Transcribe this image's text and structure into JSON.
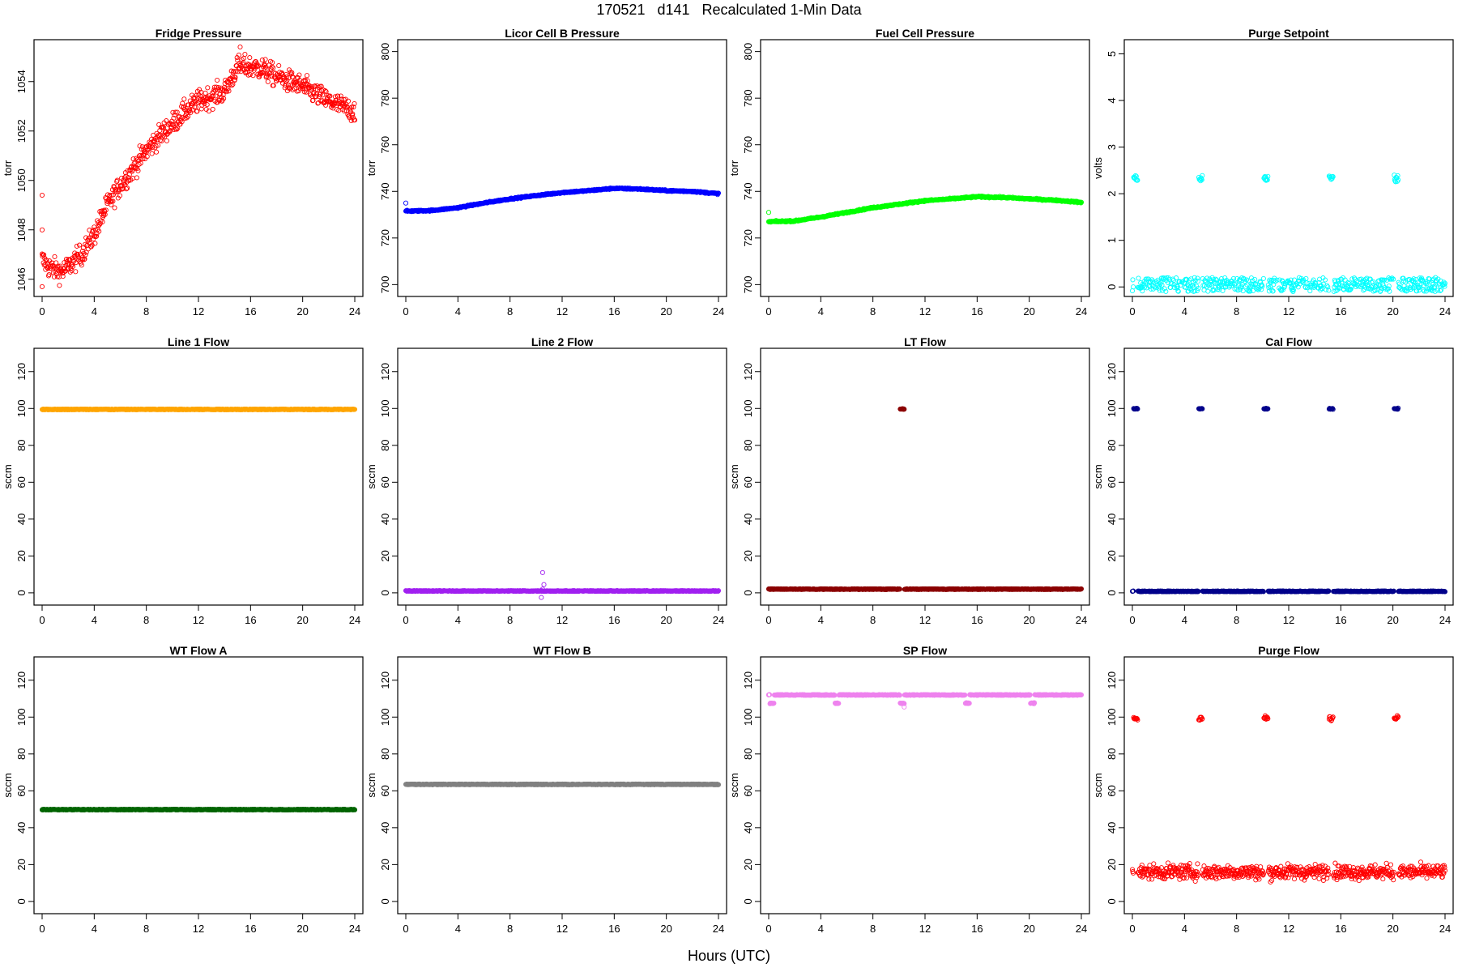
{
  "page_title": "170521   d141   Recalculated 1-Min Data",
  "x_axis_title": "Hours (UTC)",
  "chart_data": [
    {
      "type": "scatter",
      "title": "Fridge Pressure",
      "ylabel": "torr",
      "color": "#ff0000",
      "xlim": [
        0,
        24
      ],
      "ylim": [
        1045.5,
        1055.5
      ],
      "xticks": [
        0,
        4,
        8,
        12,
        16,
        20,
        24
      ],
      "yticks": [
        1046,
        1048,
        1050,
        1052,
        1054
      ],
      "curve": [
        [
          0,
          1046.8
        ],
        [
          0.5,
          1046.5
        ],
        [
          1,
          1046.4
        ],
        [
          1.5,
          1046.3
        ],
        [
          2,
          1046.5
        ],
        [
          3,
          1047
        ],
        [
          4,
          1047.8
        ],
        [
          5,
          1049
        ],
        [
          6,
          1049.8
        ],
        [
          7,
          1050.5
        ],
        [
          8,
          1051.2
        ],
        [
          9,
          1051.8
        ],
        [
          10,
          1052.3
        ],
        [
          11,
          1052.8
        ],
        [
          12,
          1053.2
        ],
        [
          13,
          1053.4
        ],
        [
          14,
          1053.6
        ],
        [
          15,
          1054.6
        ],
        [
          16,
          1054.6
        ],
        [
          17,
          1054.5
        ],
        [
          18,
          1054.2
        ],
        [
          19,
          1054
        ],
        [
          20,
          1053.8
        ],
        [
          21,
          1053.5
        ],
        [
          22,
          1053.2
        ],
        [
          23,
          1053
        ],
        [
          24,
          1052.8
        ]
      ],
      "noise": 0.45,
      "outliers": [
        [
          0,
          1049.4
        ],
        [
          0,
          1048
        ],
        [
          0,
          1045.7
        ],
        [
          15.2,
          1055.4
        ],
        [
          12.2,
          1053.4
        ]
      ]
    },
    {
      "type": "scatter",
      "title": "Licor Cell B Pressure",
      "ylabel": "torr",
      "color": "#0000ff",
      "xlim": [
        0,
        24
      ],
      "ylim": [
        697,
        803
      ],
      "xticks": [
        0,
        4,
        8,
        12,
        16,
        20,
        24
      ],
      "yticks": [
        700,
        720,
        740,
        760,
        780,
        800
      ],
      "curve": [
        [
          0,
          731.5
        ],
        [
          2,
          731.8
        ],
        [
          4,
          733
        ],
        [
          6,
          735
        ],
        [
          8,
          736.8
        ],
        [
          10,
          738.2
        ],
        [
          12,
          739.5
        ],
        [
          14,
          740.3
        ],
        [
          16,
          741.3
        ],
        [
          18,
          741
        ],
        [
          20,
          740.3
        ],
        [
          22,
          740
        ],
        [
          24,
          739
        ]
      ],
      "noise": 0.3,
      "outliers": [
        [
          0,
          735
        ]
      ]
    },
    {
      "type": "scatter",
      "title": "Fuel Cell Pressure",
      "ylabel": "torr",
      "color": "#00ff00",
      "xlim": [
        0,
        24
      ],
      "ylim": [
        697,
        803
      ],
      "xticks": [
        0,
        4,
        8,
        12,
        16,
        20,
        24
      ],
      "yticks": [
        700,
        720,
        740,
        760,
        780,
        800
      ],
      "curve": [
        [
          0,
          727
        ],
        [
          2,
          727.3
        ],
        [
          4,
          729
        ],
        [
          6,
          731
        ],
        [
          8,
          733
        ],
        [
          10,
          734.5
        ],
        [
          12,
          736
        ],
        [
          14,
          736.8
        ],
        [
          16,
          737.7
        ],
        [
          18,
          737.4
        ],
        [
          20,
          736.8
        ],
        [
          22,
          736.2
        ],
        [
          24,
          735.3
        ]
      ],
      "noise": 0.3,
      "outliers": [
        [
          0,
          731
        ]
      ]
    },
    {
      "type": "scatter",
      "title": "Purge Setpoint",
      "ylabel": "volts",
      "color": "#00ffff",
      "xlim": [
        0,
        24
      ],
      "ylim": [
        -0.1,
        5.2
      ],
      "xticks": [
        0,
        4,
        8,
        12,
        16,
        20,
        24
      ],
      "yticks": [
        0,
        1,
        2,
        3,
        4,
        5
      ],
      "baseline": 0,
      "bursts": [
        0.1,
        5.1,
        10.1,
        15.1,
        20.1
      ],
      "burst_value": 2.33,
      "burst_spread": 0.07
    },
    {
      "type": "scatter",
      "title": "Line 1 Flow",
      "ylabel": "sccm",
      "color": "#ffa500",
      "xlim": [
        0,
        24
      ],
      "ylim": [
        -4,
        130
      ],
      "xticks": [
        0,
        4,
        8,
        12,
        16,
        20,
        24
      ],
      "yticks": [
        0,
        20,
        40,
        60,
        80,
        100,
        120
      ],
      "baseline": 99.5
    },
    {
      "type": "scatter",
      "title": "Line 2 Flow",
      "ylabel": "sccm",
      "color": "#a020f0",
      "xlim": [
        0,
        24
      ],
      "ylim": [
        -4,
        130
      ],
      "xticks": [
        0,
        4,
        8,
        12,
        16,
        20,
        24
      ],
      "yticks": [
        0,
        20,
        40,
        60,
        80,
        100,
        120
      ],
      "baseline": 1,
      "outliers": [
        [
          10.5,
          11
        ],
        [
          10.6,
          4.5
        ],
        [
          10.4,
          -2.5
        ],
        [
          10.5,
          2
        ]
      ]
    },
    {
      "type": "scatter",
      "title": "LT Flow",
      "ylabel": "sccm",
      "color": "#8b0000",
      "xlim": [
        0,
        24
      ],
      "ylim": [
        -4,
        130
      ],
      "xticks": [
        0,
        4,
        8,
        12,
        16,
        20,
        24
      ],
      "yticks": [
        0,
        20,
        40,
        60,
        80,
        100,
        120
      ],
      "baseline": 2,
      "bursts": [
        10.1
      ],
      "burst_value": 99.8,
      "burst_spread": 0.3
    },
    {
      "type": "scatter",
      "title": "Cal Flow",
      "ylabel": "sccm",
      "color": "#00008b",
      "xlim": [
        0,
        24
      ],
      "ylim": [
        -4,
        130
      ],
      "xticks": [
        0,
        4,
        8,
        12,
        16,
        20,
        24
      ],
      "yticks": [
        0,
        20,
        40,
        60,
        80,
        100,
        120
      ],
      "baseline": 0.8,
      "bursts": [
        0.1,
        5.1,
        10.1,
        15.1,
        20.1
      ],
      "burst_value": 99.8,
      "burst_spread": 0.3
    },
    {
      "type": "scatter",
      "title": "WT Flow A",
      "ylabel": "sccm",
      "color": "#006400",
      "xlim": [
        0,
        24
      ],
      "ylim": [
        -4,
        130
      ],
      "xticks": [
        0,
        4,
        8,
        12,
        16,
        20,
        24
      ],
      "yticks": [
        0,
        20,
        40,
        60,
        80,
        100,
        120
      ],
      "baseline": 49.8
    },
    {
      "type": "scatter",
      "title": "WT Flow B",
      "ylabel": "sccm",
      "color": "#808080",
      "xlim": [
        0,
        24
      ],
      "ylim": [
        -4,
        130
      ],
      "xticks": [
        0,
        4,
        8,
        12,
        16,
        20,
        24
      ],
      "yticks": [
        0,
        20,
        40,
        60,
        80,
        100,
        120
      ],
      "baseline": 63.5
    },
    {
      "type": "scatter",
      "title": "SP Flow",
      "ylabel": "sccm",
      "color": "#ee82ee",
      "xlim": [
        0,
        24
      ],
      "ylim": [
        -4,
        130
      ],
      "xticks": [
        0,
        4,
        8,
        12,
        16,
        20,
        24
      ],
      "yticks": [
        0,
        20,
        40,
        60,
        80,
        100,
        120
      ],
      "baseline": 112,
      "bursts": [
        0.1,
        5.1,
        10.1,
        15.1,
        20.1
      ],
      "burst_value": 107.5,
      "burst_spread": 0.3,
      "outliers": [
        [
          0,
          112
        ],
        [
          10.4,
          105.5
        ]
      ]
    },
    {
      "type": "scatter",
      "title": "Purge Flow",
      "ylabel": "sccm",
      "color": "#ff0000",
      "xlim": [
        0,
        24
      ],
      "ylim": [
        -4,
        130
      ],
      "xticks": [
        0,
        4,
        8,
        12,
        16,
        20,
        24
      ],
      "yticks": [
        0,
        20,
        40,
        60,
        80,
        100,
        120
      ],
      "baseline": 16,
      "noise": 4,
      "bursts": [
        0.1,
        5.1,
        10.1,
        15.1,
        20.1
      ],
      "burst_value": 99.5,
      "burst_spread": 1.3
    }
  ]
}
